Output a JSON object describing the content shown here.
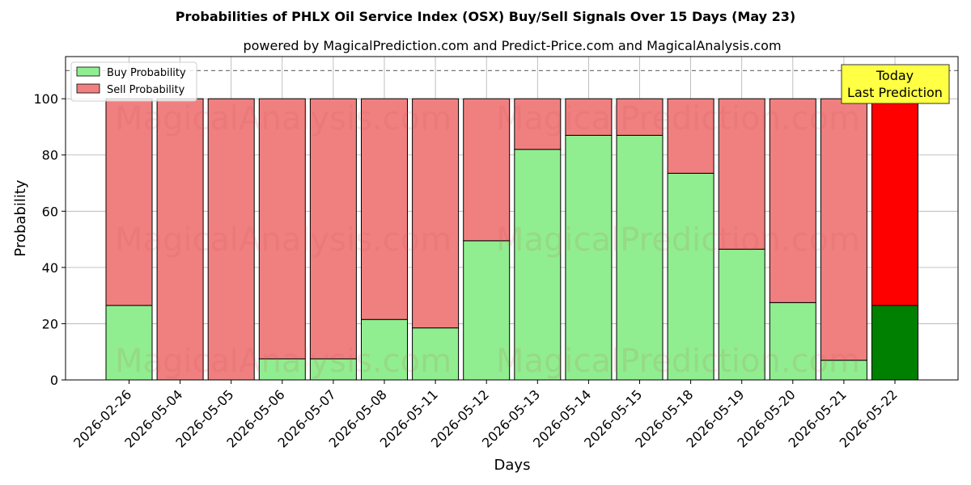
{
  "chart_data": {
    "type": "bar",
    "stacked": true,
    "title": "Probabilities of PHLX Oil Service Index (OSX) Buy/Sell Signals Over 15 Days (May 23)",
    "subtitle": "powered by MagicalPrediction.com and Predict-Price.com and MagicalAnalysis.com",
    "xlabel": "Days",
    "ylabel": "Probability",
    "ylim": [
      0,
      115
    ],
    "yticks": [
      0,
      20,
      40,
      60,
      80,
      100
    ],
    "reference_line": 110,
    "grid": true,
    "legend_position": "top-left",
    "categories": [
      "2026-02-26",
      "2026-05-04",
      "2026-05-05",
      "2026-05-06",
      "2026-05-07",
      "2026-05-08",
      "2026-05-11",
      "2026-05-12",
      "2026-05-13",
      "2026-05-14",
      "2026-05-15",
      "2026-05-18",
      "2026-05-19",
      "2026-05-20",
      "2026-05-21",
      "2026-05-22"
    ],
    "series": [
      {
        "name": "Buy Probability",
        "color": "#90ee90",
        "highlight_color": "#008000",
        "values": [
          26.5,
          0,
          0,
          7.5,
          7.5,
          21.5,
          18.5,
          49.5,
          82,
          87,
          87,
          73.5,
          46.5,
          27.5,
          7,
          26.5
        ]
      },
      {
        "name": "Sell Probability",
        "color": "#f08080",
        "highlight_color": "#ff0000",
        "values": [
          73.5,
          100,
          100,
          92.5,
          92.5,
          78.5,
          81.5,
          50.5,
          18,
          13,
          13,
          26.5,
          53.5,
          72.5,
          93,
          73.5
        ]
      }
    ],
    "highlight_index": 15,
    "annotation": {
      "lines": [
        "Today",
        "Last Prediction"
      ],
      "background": "#ffff44"
    },
    "watermarks": [
      "MagicalAnalysis.com",
      "MagicalPrediction.com"
    ]
  }
}
